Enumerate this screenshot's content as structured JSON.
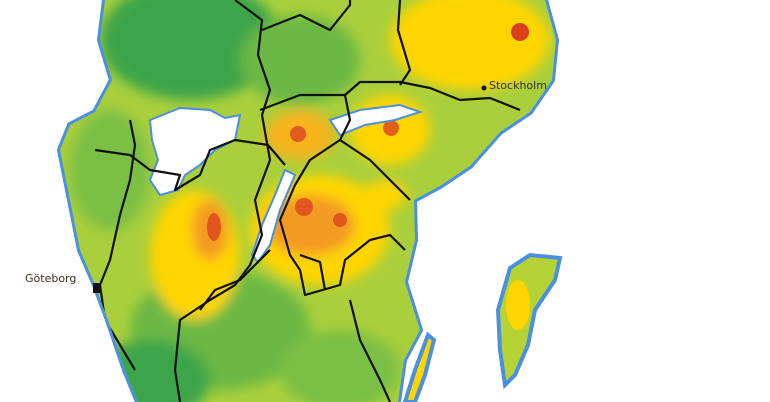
{
  "map": {
    "cities": [
      {
        "name": "Stockholm"
      },
      {
        "name": "Göteborg"
      }
    ],
    "colors": {
      "sea": "#ffffff",
      "coast_water": "#4a8fe0",
      "dark_green": "#3ea54a",
      "green": "#7cbf45",
      "light_green": "#b5d335",
      "yellow": "#ffd500",
      "orange": "#f39a23",
      "red": "#dd4a1e",
      "border": "#111111"
    }
  }
}
